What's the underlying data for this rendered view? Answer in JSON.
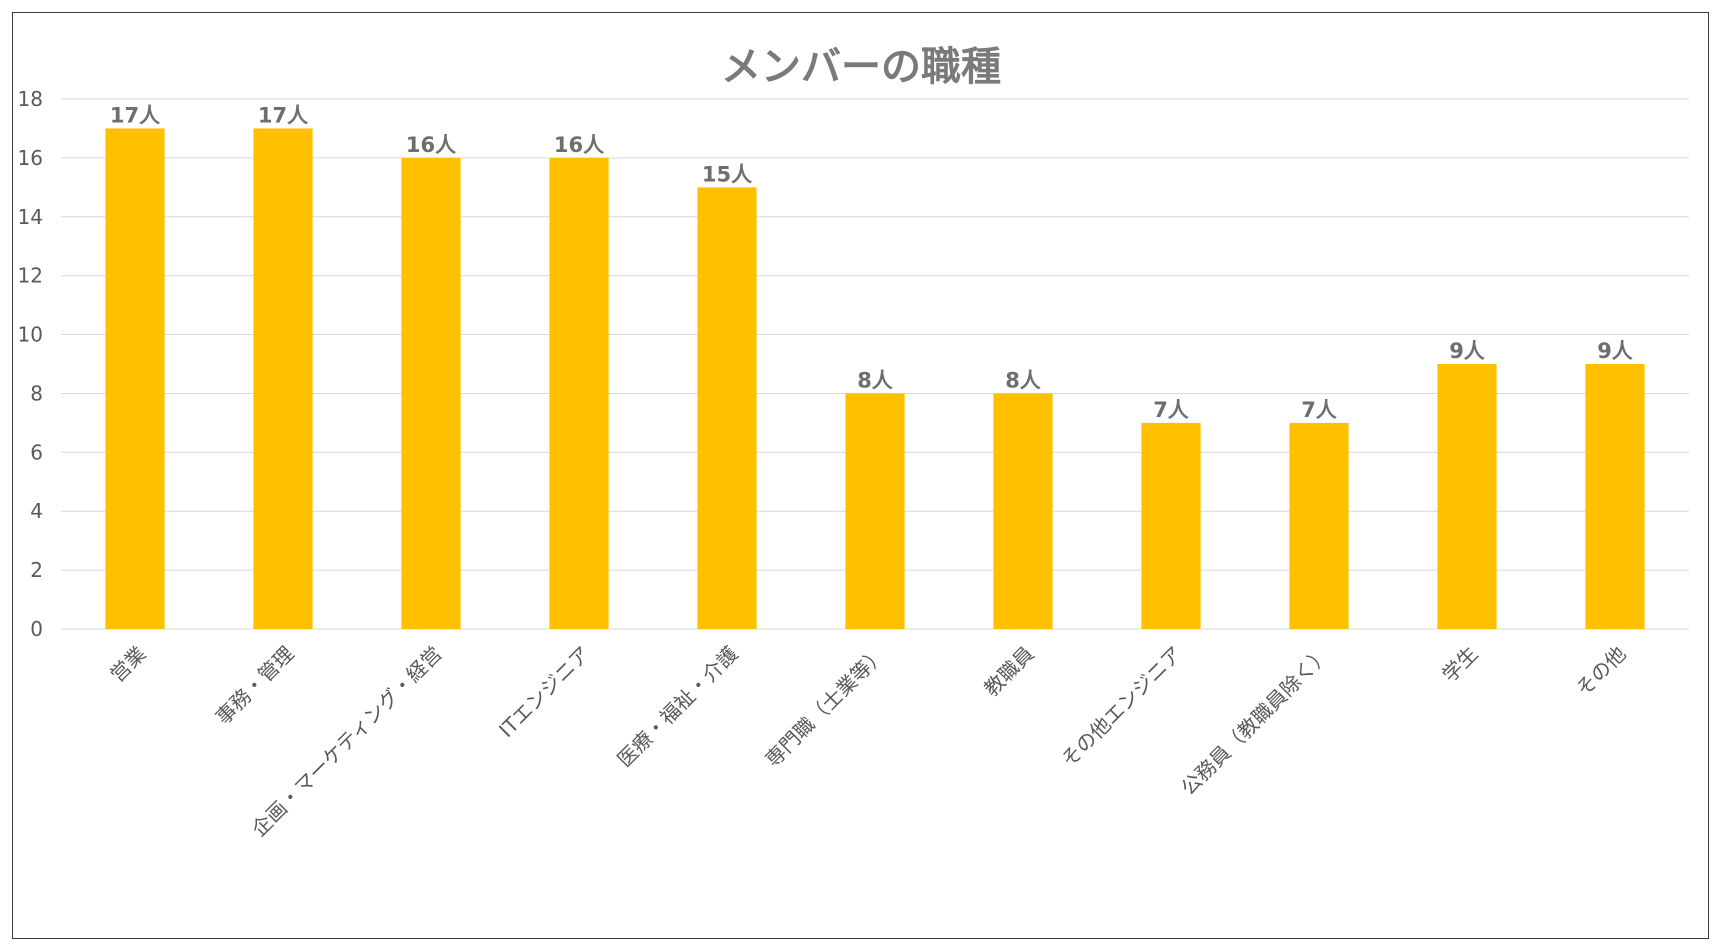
{
  "colors": {
    "bar": "#FFC000",
    "grid": "#D9D9D9",
    "axis_text": "#595959",
    "title": "#7A7A7A",
    "data_label": "#6E6E6E"
  },
  "chart_data": {
    "type": "bar",
    "title": "メンバーの職種",
    "xlabel": "",
    "ylabel": "",
    "ylim": [
      0,
      18
    ],
    "yticks": [
      0,
      2,
      4,
      6,
      8,
      10,
      12,
      14,
      16,
      18
    ],
    "grid": true,
    "legend": "none",
    "categories": [
      "営業",
      "事務・管理",
      "企画・マーケティング・経営",
      "ITエンジニア",
      "医療・福祉・介護",
      "専門職（士業等）",
      "教職員",
      "その他エンジニア",
      "公務員（教職員除く）",
      "学生",
      "その他"
    ],
    "values": [
      17,
      17,
      16,
      16,
      15,
      8,
      8,
      7,
      7,
      9,
      9
    ],
    "data_labels": [
      "17人",
      "17人",
      "16人",
      "16人",
      "15人",
      "8人",
      "8人",
      "7人",
      "7人",
      "9人",
      "9人"
    ]
  }
}
